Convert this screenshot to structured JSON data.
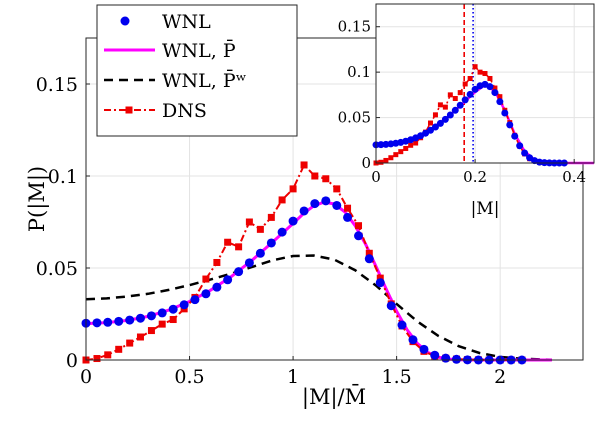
{
  "chart_data": [
    {
      "type": "line",
      "xlabel": "|M|/M̄",
      "ylabel": "P(|M|)",
      "xlim": [
        0,
        2.4
      ],
      "ylim": [
        0,
        0.175
      ],
      "xticks": [
        0,
        0.5,
        1,
        1.5,
        2
      ],
      "xtick_labels": [
        "0",
        "0.5",
        "1",
        "1.5",
        "2"
      ],
      "yticks": [
        0,
        0.05,
        0.1,
        0.15
      ],
      "ytick_labels": [
        "0",
        "0.05",
        "0.1",
        "0.15"
      ],
      "grid": true,
      "legend": {
        "placement": "top-left",
        "entries": [
          "WNL",
          "WNL, P̄",
          "WNL, P̄ʷ",
          "DNS"
        ]
      },
      "colors": {
        "wnl": "#0000ee",
        "wnl_pbar": "#ff00ff",
        "wnl_pw": "#000000",
        "dns": "#ee0000"
      },
      "series": [
        {
          "name": "WNL",
          "style": "markers",
          "x": [
            0,
            0.053,
            0.105,
            0.158,
            0.211,
            0.263,
            0.316,
            0.368,
            0.421,
            0.474,
            0.526,
            0.579,
            0.632,
            0.684,
            0.737,
            0.789,
            0.842,
            0.895,
            0.947,
            1.0,
            1.053,
            1.105,
            1.158,
            1.211,
            1.263,
            1.316,
            1.368,
            1.421,
            1.474,
            1.526,
            1.579,
            1.632,
            1.684,
            1.737,
            1.789,
            1.842,
            1.895,
            1.947,
            2.0,
            2.053,
            2.105
          ],
          "y": [
            0.02,
            0.0202,
            0.0205,
            0.021,
            0.0217,
            0.0227,
            0.024,
            0.0256,
            0.0276,
            0.03,
            0.0328,
            0.036,
            0.0396,
            0.0436,
            0.048,
            0.0528,
            0.058,
            0.0636,
            0.0695,
            0.0755,
            0.081,
            0.085,
            0.0865,
            0.084,
            0.0775,
            0.0675,
            0.055,
            0.042,
            0.0295,
            0.019,
            0.011,
            0.0058,
            0.0026,
            0.001,
            0.0004,
            0.0001,
            0,
            0,
            0,
            0,
            0
          ]
        },
        {
          "name": "WNL, P̄",
          "style": "solid",
          "x": [
            0,
            0.1,
            0.2,
            0.3,
            0.4,
            0.5,
            0.6,
            0.7,
            0.8,
            0.9,
            1.0,
            1.05,
            1.1,
            1.15,
            1.2,
            1.25,
            1.3,
            1.35,
            1.4,
            1.45,
            1.5,
            1.55,
            1.6,
            1.65,
            1.7,
            1.75,
            1.8,
            1.9,
            2.0,
            2.1,
            2.2,
            2.25
          ],
          "y": [
            0.0198,
            0.0203,
            0.0215,
            0.0237,
            0.0271,
            0.0318,
            0.0378,
            0.0452,
            0.054,
            0.064,
            0.0742,
            0.0795,
            0.0838,
            0.0858,
            0.0848,
            0.0805,
            0.073,
            0.063,
            0.051,
            0.0385,
            0.0265,
            0.0165,
            0.009,
            0.0042,
            0.0016,
            0.0005,
            0.0001,
            0,
            0,
            0,
            0,
            0
          ]
        },
        {
          "name": "WNL, P̄ʷ",
          "style": "dashed",
          "x": [
            0,
            0.1,
            0.2,
            0.3,
            0.4,
            0.5,
            0.6,
            0.7,
            0.8,
            0.9,
            1.0,
            1.1,
            1.2,
            1.3,
            1.4,
            1.5,
            1.6,
            1.7,
            1.8,
            1.9,
            2.0,
            2.1,
            2.2,
            2.25
          ],
          "y": [
            0.033,
            0.0335,
            0.0345,
            0.036,
            0.0381,
            0.0407,
            0.0437,
            0.0469,
            0.0505,
            0.0542,
            0.0565,
            0.0568,
            0.0545,
            0.0488,
            0.0405,
            0.0305,
            0.021,
            0.0132,
            0.0075,
            0.0038,
            0.0017,
            0.0007,
            0.0003,
            0.0001
          ]
        },
        {
          "name": "DNS",
          "style": "dash-dot-markers",
          "x": [
            0,
            0.053,
            0.105,
            0.158,
            0.211,
            0.263,
            0.316,
            0.368,
            0.421,
            0.474,
            0.526,
            0.579,
            0.632,
            0.684,
            0.737,
            0.789,
            0.842,
            0.895,
            0.947,
            1.0,
            1.053,
            1.105,
            1.158,
            1.211,
            1.263,
            1.316,
            1.368,
            1.421,
            1.474,
            1.526,
            1.579,
            1.632,
            1.684,
            1.737,
            1.789,
            1.842,
            1.895,
            1.947,
            2.0,
            2.053,
            2.105
          ],
          "y": [
            0,
            0.0008,
            0.0028,
            0.0058,
            0.0092,
            0.0125,
            0.016,
            0.0195,
            0.022,
            0.0278,
            0.034,
            0.044,
            0.053,
            0.064,
            0.0615,
            0.075,
            0.071,
            0.0775,
            0.087,
            0.093,
            0.106,
            0.1,
            0.0985,
            0.093,
            0.0825,
            0.073,
            0.058,
            0.0445,
            0.0305,
            0.0185,
            0.01,
            0.0047,
            0.0022,
            0.001,
            0.0005,
            0.0002,
            0.0001,
            0,
            0,
            0,
            0
          ]
        }
      ]
    },
    {
      "type": "line",
      "placement": "inset top-right",
      "xlabel": "|M|",
      "ylabel": "",
      "xlim": [
        0,
        0.44
      ],
      "ylim": [
        0,
        0.175
      ],
      "xticks": [
        0,
        0.2,
        0.4
      ],
      "xtick_labels": [
        "0",
        "0.2",
        "0.4"
      ],
      "yticks": [
        0,
        0.05,
        0.1,
        0.15
      ],
      "ytick_labels": [
        "0",
        "0.05",
        "0.1",
        "0.15"
      ],
      "grid": true,
      "vertical_lines": [
        {
          "x": 0.178,
          "color": "#ee0000",
          "style": "dashed"
        },
        {
          "x": 0.196,
          "color": "#0000ee",
          "style": "dotted"
        }
      ],
      "series": [
        {
          "name": "WNL",
          "style": "markers",
          "x": [
            0,
            0.01,
            0.02,
            0.03,
            0.04,
            0.05,
            0.06,
            0.07,
            0.08,
            0.09,
            0.1,
            0.11,
            0.12,
            0.13,
            0.14,
            0.15,
            0.16,
            0.17,
            0.18,
            0.19,
            0.2,
            0.21,
            0.22,
            0.23,
            0.24,
            0.25,
            0.26,
            0.27,
            0.28,
            0.29,
            0.3,
            0.31,
            0.32,
            0.33,
            0.34,
            0.35,
            0.36,
            0.37,
            0.38
          ],
          "y": [
            0.02,
            0.0202,
            0.0205,
            0.021,
            0.0217,
            0.0227,
            0.024,
            0.0256,
            0.0276,
            0.03,
            0.0328,
            0.036,
            0.0396,
            0.0436,
            0.048,
            0.0528,
            0.058,
            0.0636,
            0.0695,
            0.0755,
            0.081,
            0.085,
            0.0865,
            0.084,
            0.0775,
            0.0675,
            0.055,
            0.042,
            0.0295,
            0.019,
            0.011,
            0.0058,
            0.0026,
            0.001,
            0.0004,
            0.0001,
            0,
            0,
            0
          ]
        },
        {
          "name": "WNL, P̄",
          "style": "solid",
          "x": [
            0,
            0.05,
            0.1,
            0.15,
            0.2,
            0.22,
            0.24,
            0.26,
            0.28,
            0.3,
            0.32,
            0.34,
            0.36,
            0.4,
            0.44
          ],
          "y": [
            0.0198,
            0.0227,
            0.0328,
            0.0528,
            0.078,
            0.0858,
            0.079,
            0.058,
            0.032,
            0.013,
            0.0035,
            0.0006,
            0.0001,
            0,
            0
          ]
        },
        {
          "name": "DNS",
          "style": "dash-dot-markers",
          "x": [
            0,
            0.01,
            0.02,
            0.03,
            0.04,
            0.05,
            0.06,
            0.07,
            0.08,
            0.09,
            0.1,
            0.11,
            0.12,
            0.13,
            0.14,
            0.15,
            0.16,
            0.17,
            0.18,
            0.19,
            0.2,
            0.21,
            0.22,
            0.23,
            0.24,
            0.25,
            0.26,
            0.27,
            0.28,
            0.29,
            0.3,
            0.31,
            0.32,
            0.33,
            0.34,
            0.35,
            0.36,
            0.37,
            0.38
          ],
          "y": [
            0,
            0.0008,
            0.0028,
            0.0058,
            0.0092,
            0.0125,
            0.016,
            0.0195,
            0.022,
            0.0278,
            0.034,
            0.044,
            0.053,
            0.064,
            0.0615,
            0.075,
            0.071,
            0.0775,
            0.087,
            0.093,
            0.106,
            0.1,
            0.0985,
            0.093,
            0.0825,
            0.073,
            0.058,
            0.0445,
            0.0305,
            0.0185,
            0.01,
            0.0047,
            0.0022,
            0.001,
            0.0005,
            0.0002,
            0.0001,
            0,
            0
          ]
        }
      ]
    }
  ]
}
